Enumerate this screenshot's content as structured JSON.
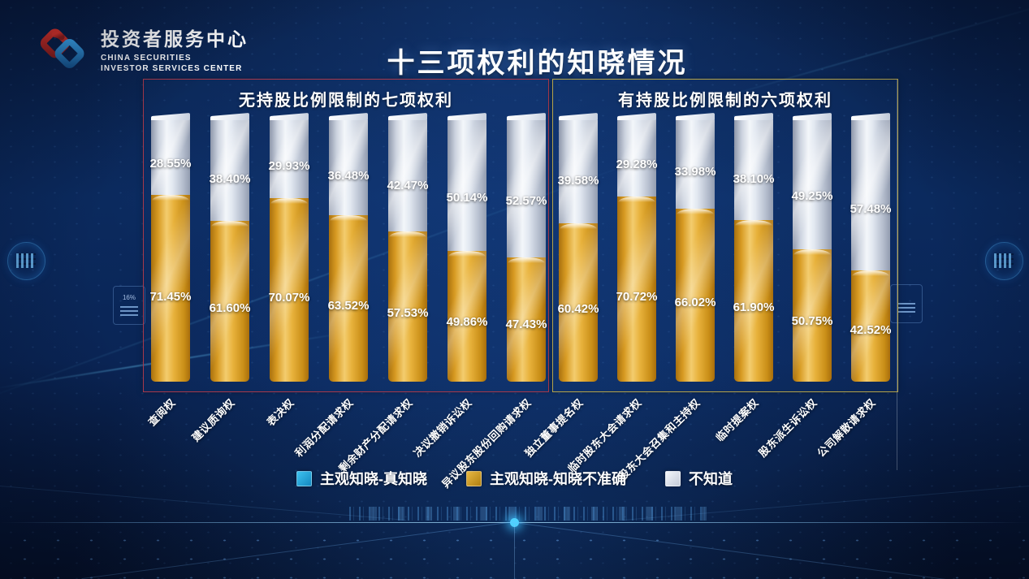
{
  "header": {
    "logo_title": "投资者服务中心",
    "logo_subtitle1": "CHINA SECURITIES",
    "logo_subtitle2": "INVESTOR SERVICES CENTER",
    "title": "十三项权利的知晓情况"
  },
  "chart_data": {
    "type": "bar",
    "stacked": true,
    "orientation": "vertical",
    "unit": "%",
    "title": "十三项权利的知晓情况",
    "legend_position": "bottom",
    "legend": [
      "主观知晓-真知晓",
      "主观知晓-知晓不准确",
      "不知道"
    ],
    "groups": [
      {
        "label": "无持股比例限制的七项权利",
        "border_color": "#a8394a",
        "categories": [
          "查阅权",
          "建议质询权",
          "表决权",
          "利润分配请求权",
          "剩余财产分配请求权",
          "决议撤销诉讼权",
          "异议股东股份回购请求权"
        ],
        "series": [
          {
            "name": "主观知晓-知晓不准确",
            "color": "#e0a42c",
            "values": [
              71.45,
              61.6,
              70.07,
              63.52,
              57.53,
              49.86,
              47.43
            ]
          },
          {
            "name": "不知道",
            "color": "#dde2ea",
            "values": [
              28.55,
              38.4,
              29.93,
              36.48,
              42.47,
              50.14,
              52.57
            ]
          }
        ]
      },
      {
        "label": "有持股比例限制的六项权利",
        "border_color": "#b5a348",
        "categories": [
          "独立董事提名权",
          "临时股东大会请求权",
          "股东大会召集和主持权",
          "临时提案权",
          "股东派生诉讼权",
          "公司解散请求权"
        ],
        "series": [
          {
            "name": "主观知晓-知晓不准确",
            "color": "#e0a42c",
            "values": [
              60.42,
              70.72,
              66.02,
              61.9,
              50.75,
              42.52
            ]
          },
          {
            "name": "不知道",
            "color": "#dde2ea",
            "values": [
              39.58,
              29.28,
              33.98,
              38.1,
              49.25,
              57.48
            ]
          }
        ]
      }
    ]
  },
  "legend": [
    {
      "label": "主观知晓-真知晓",
      "color_top": "#3dc2f0",
      "color_bottom": "#1488c0"
    },
    {
      "label": "主观知晓-知晓不准确",
      "color_top": "#e8b843",
      "color_bottom": "#b07f10"
    },
    {
      "label": "不知道",
      "color_top": "#f4f7fb",
      "color_bottom": "#c4cbd8"
    }
  ],
  "decor": {
    "side_panel_value": "16%"
  }
}
